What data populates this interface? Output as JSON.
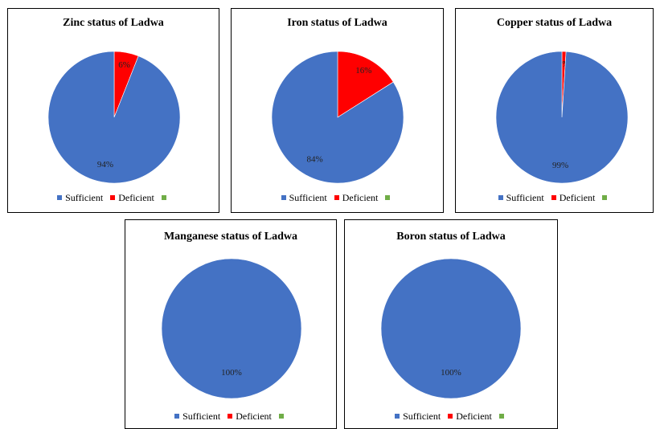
{
  "colors": {
    "sufficient": "#4472C4",
    "deficient": "#FF0000",
    "blank": "#70AD47"
  },
  "chart_data": [
    {
      "type": "pie",
      "title": "Zinc status of Ladwa",
      "categories": [
        "Sufficient",
        "Deficient",
        ""
      ],
      "values": [
        94,
        6,
        0
      ],
      "labels": [
        "94%",
        "6%",
        ""
      ],
      "legend": "bottom"
    },
    {
      "type": "pie",
      "title": "Iron status of Ladwa",
      "categories": [
        "Sufficient",
        "Deficient",
        ""
      ],
      "values": [
        84,
        16,
        0
      ],
      "labels": [
        "84%",
        "16%",
        ""
      ],
      "legend": "bottom"
    },
    {
      "type": "pie",
      "title": "Copper status of Ladwa",
      "categories": [
        "Sufficient",
        "Deficient",
        ""
      ],
      "values": [
        99,
        1,
        0
      ],
      "labels": [
        "99%",
        "1%",
        ""
      ],
      "legend": "bottom"
    },
    {
      "type": "pie",
      "title": "Manganese status of Ladwa",
      "categories": [
        "Sufficient",
        "Deficient",
        ""
      ],
      "values": [
        100,
        0,
        0
      ],
      "labels": [
        "100%",
        "",
        ""
      ],
      "legend": "bottom"
    },
    {
      "type": "pie",
      "title": "Boron status of Ladwa",
      "categories": [
        "Sufficient",
        "Deficient",
        ""
      ],
      "values": [
        100,
        0,
        0
      ],
      "labels": [
        "100%",
        "",
        ""
      ],
      "legend": "bottom"
    }
  ]
}
